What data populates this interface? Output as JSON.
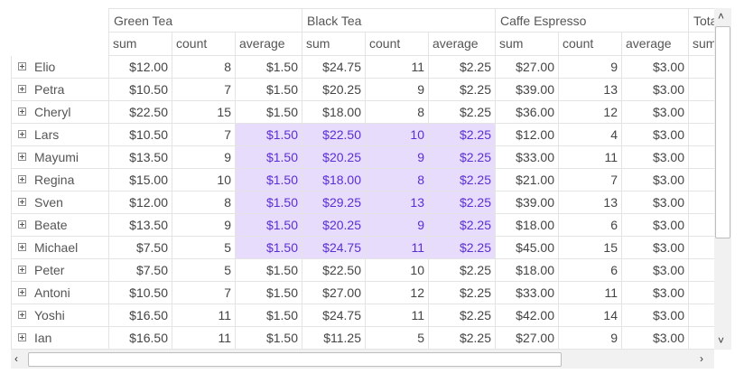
{
  "column_groups": [
    {
      "label": "Green Tea"
    },
    {
      "label": "Black Tea"
    },
    {
      "label": "Caffe Espresso"
    },
    {
      "label": "Tota"
    }
  ],
  "measure_labels": [
    "sum",
    "count",
    "average",
    "sum",
    "count",
    "average",
    "sum",
    "count",
    "average",
    "sum"
  ],
  "rows": [
    {
      "name": "Elio",
      "values": [
        "$12.00",
        "8",
        "$1.50",
        "$24.75",
        "11",
        "$2.25",
        "$27.00",
        "9",
        "$3.00",
        "$"
      ]
    },
    {
      "name": "Petra",
      "values": [
        "$10.50",
        "7",
        "$1.50",
        "$20.25",
        "9",
        "$2.25",
        "$39.00",
        "13",
        "$3.00",
        "$"
      ]
    },
    {
      "name": "Cheryl",
      "values": [
        "$22.50",
        "15",
        "$1.50",
        "$18.00",
        "8",
        "$2.25",
        "$36.00",
        "12",
        "$3.00",
        "$"
      ]
    },
    {
      "name": "Lars",
      "values": [
        "$10.50",
        "7",
        "$1.50",
        "$22.50",
        "10",
        "$2.25",
        "$12.00",
        "4",
        "$3.00",
        "$"
      ]
    },
    {
      "name": "Mayumi",
      "values": [
        "$13.50",
        "9",
        "$1.50",
        "$20.25",
        "9",
        "$2.25",
        "$33.00",
        "11",
        "$3.00",
        "$"
      ]
    },
    {
      "name": "Regina",
      "values": [
        "$15.00",
        "10",
        "$1.50",
        "$18.00",
        "8",
        "$2.25",
        "$21.00",
        "7",
        "$3.00",
        "$"
      ]
    },
    {
      "name": "Sven",
      "values": [
        "$12.00",
        "8",
        "$1.50",
        "$29.25",
        "13",
        "$2.25",
        "$39.00",
        "13",
        "$3.00",
        "$"
      ]
    },
    {
      "name": "Beate",
      "values": [
        "$13.50",
        "9",
        "$1.50",
        "$20.25",
        "9",
        "$2.25",
        "$18.00",
        "6",
        "$3.00",
        "$"
      ]
    },
    {
      "name": "Michael",
      "values": [
        "$7.50",
        "5",
        "$1.50",
        "$24.75",
        "11",
        "$2.25",
        "$45.00",
        "15",
        "$3.00",
        "$"
      ]
    },
    {
      "name": "Peter",
      "values": [
        "$7.50",
        "5",
        "$1.50",
        "$22.50",
        "10",
        "$2.25",
        "$18.00",
        "6",
        "$3.00",
        "$"
      ]
    },
    {
      "name": "Antoni",
      "values": [
        "$10.50",
        "7",
        "$1.50",
        "$27.00",
        "12",
        "$2.25",
        "$33.00",
        "11",
        "$3.00",
        "$"
      ]
    },
    {
      "name": "Yoshi",
      "values": [
        "$16.50",
        "11",
        "$1.50",
        "$24.75",
        "11",
        "$2.25",
        "$42.00",
        "14",
        "$3.00",
        "$"
      ]
    },
    {
      "name": "Ian",
      "values": [
        "$16.50",
        "11",
        "$1.50",
        "$11.25",
        "5",
        "$2.25",
        "$27.00",
        "9",
        "$3.00",
        "$"
      ]
    }
  ],
  "selection": {
    "first_row": 3,
    "last_row": 8,
    "first_col": 2,
    "last_col": 5
  },
  "icons": {
    "expand": "plus-box-icon",
    "scroll_up": "chevron-up-icon",
    "scroll_down": "chevron-down-icon",
    "scroll_left": "chevron-left-icon",
    "scroll_right": "chevron-right-icon"
  },
  "colors": {
    "selection_bg": "#e7dcfc",
    "selection_text": "#5a2fd1",
    "grid_line": "#e4e4e4"
  }
}
